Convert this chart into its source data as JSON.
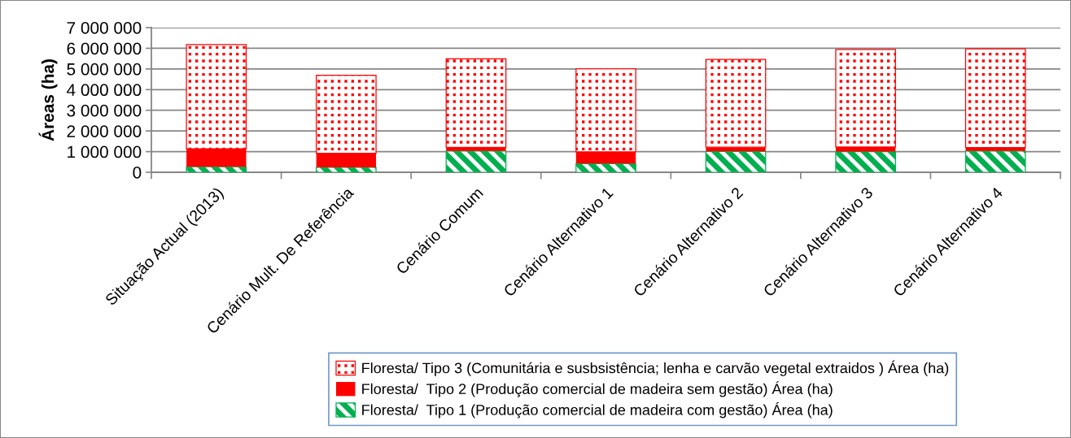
{
  "chart_data": {
    "type": "bar",
    "stacked": true,
    "ylabel": "Áreas (ha)",
    "categories": [
      "Situação Actual (2013)",
      "Cenário Mult. De Referência",
      "Cenário Comum",
      "Cenário Alternativo 1",
      "Cenário Alternativo 2",
      "Cenário Alternativo 3",
      "Cenário Alternativo 4"
    ],
    "series": [
      {
        "name": "Floresta/  Tipo 1 (Produção comercial de madeira com gestão) Área (ha)",
        "color": "#00b050",
        "values": [
          270000,
          240000,
          1030000,
          420000,
          1010000,
          1000000,
          1030000
        ]
      },
      {
        "name": "Floresta/  Tipo 2 (Produção comercial de madeira sem gestão) Área (ha)",
        "color": "#ff0000",
        "values": [
          870000,
          680000,
          170000,
          570000,
          200000,
          220000,
          160000
        ]
      },
      {
        "name": "Floresta/ Tipo 3 (Comunitária e susbsistência; lenha e carvão vegetal extraidos ) Área (ha)",
        "color": "#ff0000",
        "values": [
          5040000,
          3770000,
          4290000,
          4020000,
          4250000,
          4720000,
          4780000
        ]
      }
    ],
    "ylim": [
      0,
      7000000
    ],
    "yticks": [
      0,
      {
        "value": 1000000,
        "label": "1 000 000"
      },
      {
        "value": 2000000,
        "label": "2 000 000"
      },
      {
        "value": 3000000,
        "label": "3 000 000"
      },
      {
        "value": 4000000,
        "label": "4 000 000"
      },
      {
        "value": 5000000,
        "label": "5 000 000"
      },
      {
        "value": 6000000,
        "label": "6 000 000"
      },
      {
        "value": 7000000,
        "label": "7 000 000"
      }
    ],
    "grid": "y",
    "legend": "bottom"
  }
}
